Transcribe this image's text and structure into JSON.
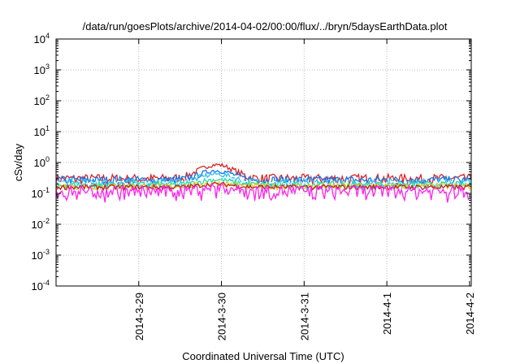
{
  "chart_data": {
    "type": "line",
    "title": "/data/run/goesPlots/archive/2014-04-02/00:00/flux/../bryn/5daysEarthData.plot",
    "xlabel": "Coordinated Universal Time (UTC)",
    "ylabel": "cSv/day",
    "y_scale": "log",
    "ylim": [
      0.0001,
      10000
    ],
    "xlim": [
      "2014-03-28T00:00",
      "2014-04-02T00:30"
    ],
    "y_ticks": [
      {
        "value": 0.0001,
        "base": "10",
        "exp": "-4"
      },
      {
        "value": 0.001,
        "base": "10",
        "exp": "-3"
      },
      {
        "value": 0.01,
        "base": "10",
        "exp": "-2"
      },
      {
        "value": 0.1,
        "base": "10",
        "exp": "-1"
      },
      {
        "value": 1,
        "base": "10",
        "exp": "0"
      },
      {
        "value": 10,
        "base": "10",
        "exp": "1"
      },
      {
        "value": 100,
        "base": "10",
        "exp": "2"
      },
      {
        "value": 1000,
        "base": "10",
        "exp": "3"
      },
      {
        "value": 10000,
        "base": "10",
        "exp": "4"
      }
    ],
    "x_ticks": [
      {
        "label": "2014-3-29",
        "value": "2014-03-29T00:00"
      },
      {
        "label": "2014-3-30",
        "value": "2014-03-30T00:00"
      },
      {
        "label": "2014-3-31",
        "value": "2014-03-31T00:00"
      },
      {
        "label": "2014-4-1",
        "value": "2014-04-01T00:00"
      },
      {
        "label": "2014-4-2",
        "value": "2014-04-02T00:00"
      }
    ],
    "grid": true,
    "legend": "none",
    "series": [
      {
        "color": "#dd2222",
        "level": 0.3,
        "noise": 0.12,
        "peak": 0.85
      },
      {
        "color": "#1177ee",
        "level": 0.27,
        "noise": 0.09,
        "peak": 0.55
      },
      {
        "color": "#33bbee",
        "level": 0.22,
        "noise": 0.08,
        "peak": 0.42
      },
      {
        "color": "#ffffff",
        "level": 0.2,
        "noise": 0.05,
        "peak": 0.32
      },
      {
        "color": "#22ddaa",
        "level": 0.19,
        "noise": 0.05,
        "peak": 0.28
      },
      {
        "color": "#ddcc22",
        "level": 0.17,
        "noise": 0.04,
        "peak": 0.22
      },
      {
        "color": "#bb2222",
        "level": 0.16,
        "noise": 0.03,
        "peak": 0.2
      },
      {
        "color": "#ff22ee",
        "level": 0.12,
        "noise": 0.06,
        "peak": 0.16
      }
    ]
  }
}
